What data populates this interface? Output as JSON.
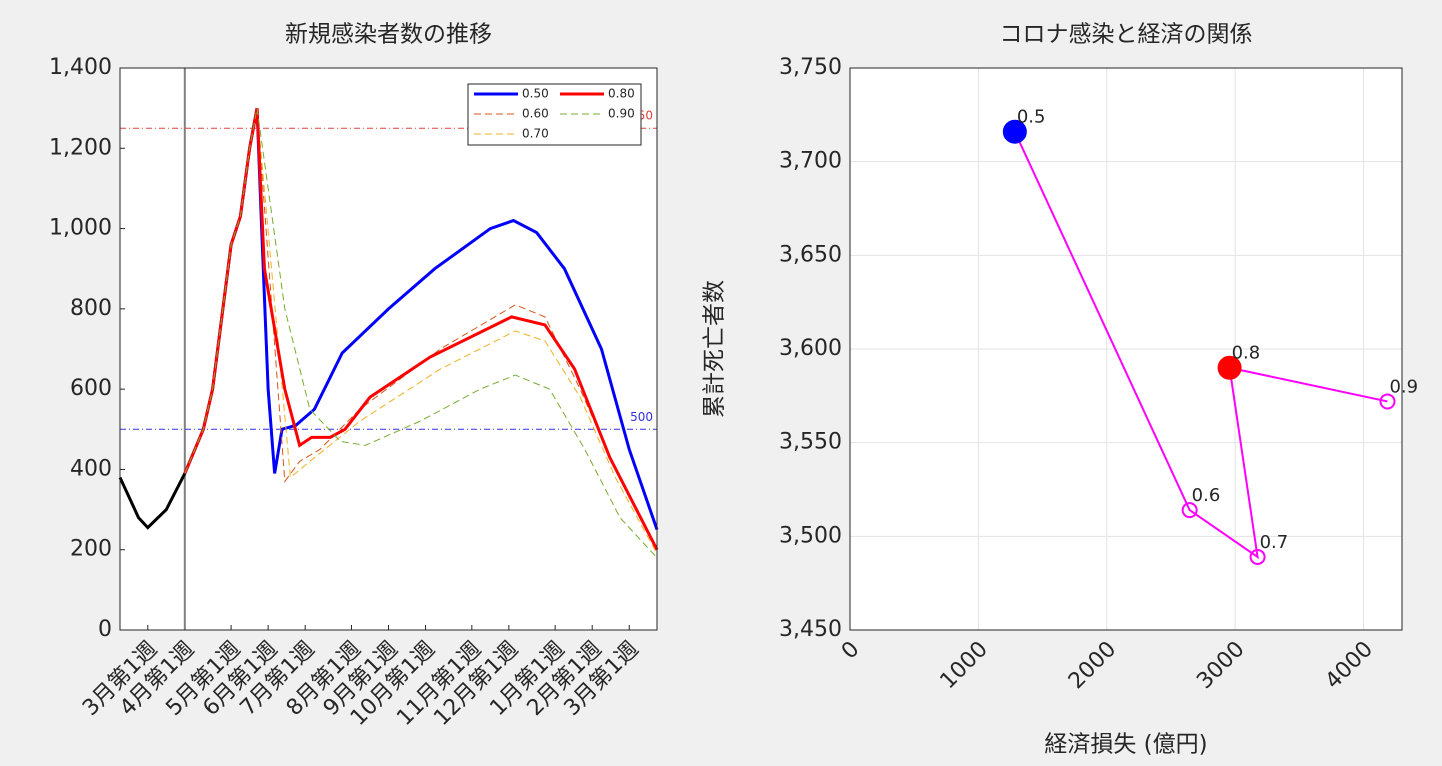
{
  "chart_data": [
    {
      "type": "line",
      "title": "新規感染者数の推移",
      "xlim": [
        0,
        58
      ],
      "ylim": [
        0,
        1400
      ],
      "yticks": [
        0,
        200,
        400,
        600,
        800,
        {
          "value": 1000,
          "label": "1,000"
        },
        {
          "value": 1200,
          "label": "1,200"
        },
        {
          "value": 1400,
          "label": "1,400"
        }
      ],
      "xticks": [
        {
          "value": 3,
          "label": "3月第1週"
        },
        {
          "value": 7,
          "label": "4月第1週"
        },
        {
          "value": 12,
          "label": "5月第1週"
        },
        {
          "value": 16,
          "label": "6月第1週"
        },
        {
          "value": 20,
          "label": "7月第1週"
        },
        {
          "value": 25,
          "label": "8月第1週"
        },
        {
          "value": 29,
          "label": "9月第1週"
        },
        {
          "value": 33,
          "label": "10月第1週"
        },
        {
          "value": 38,
          "label": "11月第1週"
        },
        {
          "value": 42,
          "label": "12月第1週"
        },
        {
          "value": 47,
          "label": "1月第1週"
        },
        {
          "value": 51,
          "label": "2月第1週"
        },
        {
          "value": 55,
          "label": "3月第1週"
        }
      ],
      "vline": {
        "value": 7,
        "color": "#808080"
      },
      "reference_lines": [
        {
          "value": 1250,
          "color": "#e0403a",
          "label": "1250"
        },
        {
          "value": 500,
          "color": "#3030e0",
          "label": "500"
        }
      ],
      "legend": "upper right",
      "legend_columns": 2,
      "series": [
        {
          "color": "#000000",
          "dash": "solid",
          "x": [
            0,
            2,
            3,
            5,
            7
          ],
          "values": [
            380,
            280,
            255,
            300,
            390
          ]
        },
        {
          "name": "0.50",
          "color": "#0000ff",
          "dash": "solid",
          "x": [
            7,
            9,
            10,
            12,
            13,
            14,
            14.8,
            15.3,
            16,
            16.7,
            17.5,
            19,
            21,
            24,
            29,
            34,
            40,
            42.5,
            45,
            48,
            52,
            55,
            58
          ],
          "values": [
            390,
            500,
            600,
            960,
            1030,
            1200,
            1300,
            1000,
            600,
            390,
            500,
            510,
            550,
            690,
            800,
            900,
            1000,
            1020,
            990,
            900,
            700,
            450,
            250
          ]
        },
        {
          "name": "0.60",
          "color": "#d95319",
          "dash": "dashed",
          "x": [
            7,
            9,
            10,
            12,
            13,
            14,
            14.8,
            17.8,
            19.4,
            21.6,
            25.9,
            34.6,
            42.7,
            45.9,
            49.7,
            53.5,
            58
          ],
          "values": [
            390,
            500,
            600,
            960,
            1030,
            1200,
            1300,
            370,
            420,
            450,
            550,
            700,
            810,
            780,
            600,
            400,
            200
          ]
        },
        {
          "name": "0.70",
          "color": "#edb120",
          "dash": "dashed",
          "x": [
            7,
            9,
            10,
            12,
            13,
            14,
            14.8,
            18.4,
            20.5,
            25.9,
            34.6,
            42.7,
            45.9,
            49.7,
            53.5,
            58
          ],
          "values": [
            390,
            500,
            600,
            960,
            1030,
            1200,
            1300,
            380,
            420,
            520,
            650,
            745,
            720,
            580,
            380,
            190
          ]
        },
        {
          "name": "0.80",
          "color": "#ff0000",
          "dash": "solid",
          "x": [
            7,
            9,
            10,
            12,
            13,
            14,
            14.8,
            15.6,
            17.8,
            19.4,
            20.7,
            22.7,
            24.3,
            27,
            33.5,
            42.3,
            45.9,
            49.1,
            52.9,
            58
          ],
          "values": [
            390,
            500,
            600,
            960,
            1030,
            1200,
            1300,
            900,
            600,
            460,
            480,
            480,
            500,
            580,
            680,
            780,
            760,
            650,
            430,
            200
          ]
        },
        {
          "name": "0.90",
          "color": "#77ac30",
          "dash": "dashed",
          "x": [
            7,
            9,
            10,
            12,
            13,
            14,
            14.8,
            15.7,
            17.8,
            20.5,
            23.8,
            26.5,
            32.4,
            38.9,
            42.7,
            46.4,
            50.2,
            54,
            58
          ],
          "values": [
            390,
            500,
            600,
            960,
            1030,
            1200,
            1300,
            1150,
            800,
            550,
            470,
            460,
            520,
            600,
            635,
            600,
            450,
            280,
            180
          ]
        }
      ]
    },
    {
      "type": "scatter",
      "title": "コロナ感染と経済の関係",
      "x_label": "経済損失 (億円)",
      "y_label": "累計死亡者数",
      "xlim": [
        0,
        4300
      ],
      "ylim": [
        3450,
        3750
      ],
      "xticks": [
        0,
        1000,
        2000,
        3000,
        4000
      ],
      "yticks": [
        {
          "value": 3450,
          "label": "3,450"
        },
        {
          "value": 3500,
          "label": "3,500"
        },
        {
          "value": 3550,
          "label": "3,550"
        },
        {
          "value": 3600,
          "label": "3,600"
        },
        {
          "value": 3650,
          "label": "3,650"
        },
        {
          "value": 3700,
          "label": "3,700"
        },
        {
          "value": 3750,
          "label": "3,750"
        }
      ],
      "grid": true,
      "line_color": "#ff00ff",
      "x": [
        1284,
        2646,
        3175,
        2957,
        4187
      ],
      "values": [
        3716,
        3514,
        3489,
        3590,
        3572
      ],
      "point_labels": [
        "0.5",
        "0.6",
        "0.7",
        "0.8",
        "0.9"
      ],
      "marker_colors": [
        "#0000ff",
        "#ff00ff",
        "#ff00ff",
        "#ff0000",
        "#ff00ff"
      ],
      "filled": [
        true,
        false,
        false,
        true,
        false
      ]
    }
  ]
}
